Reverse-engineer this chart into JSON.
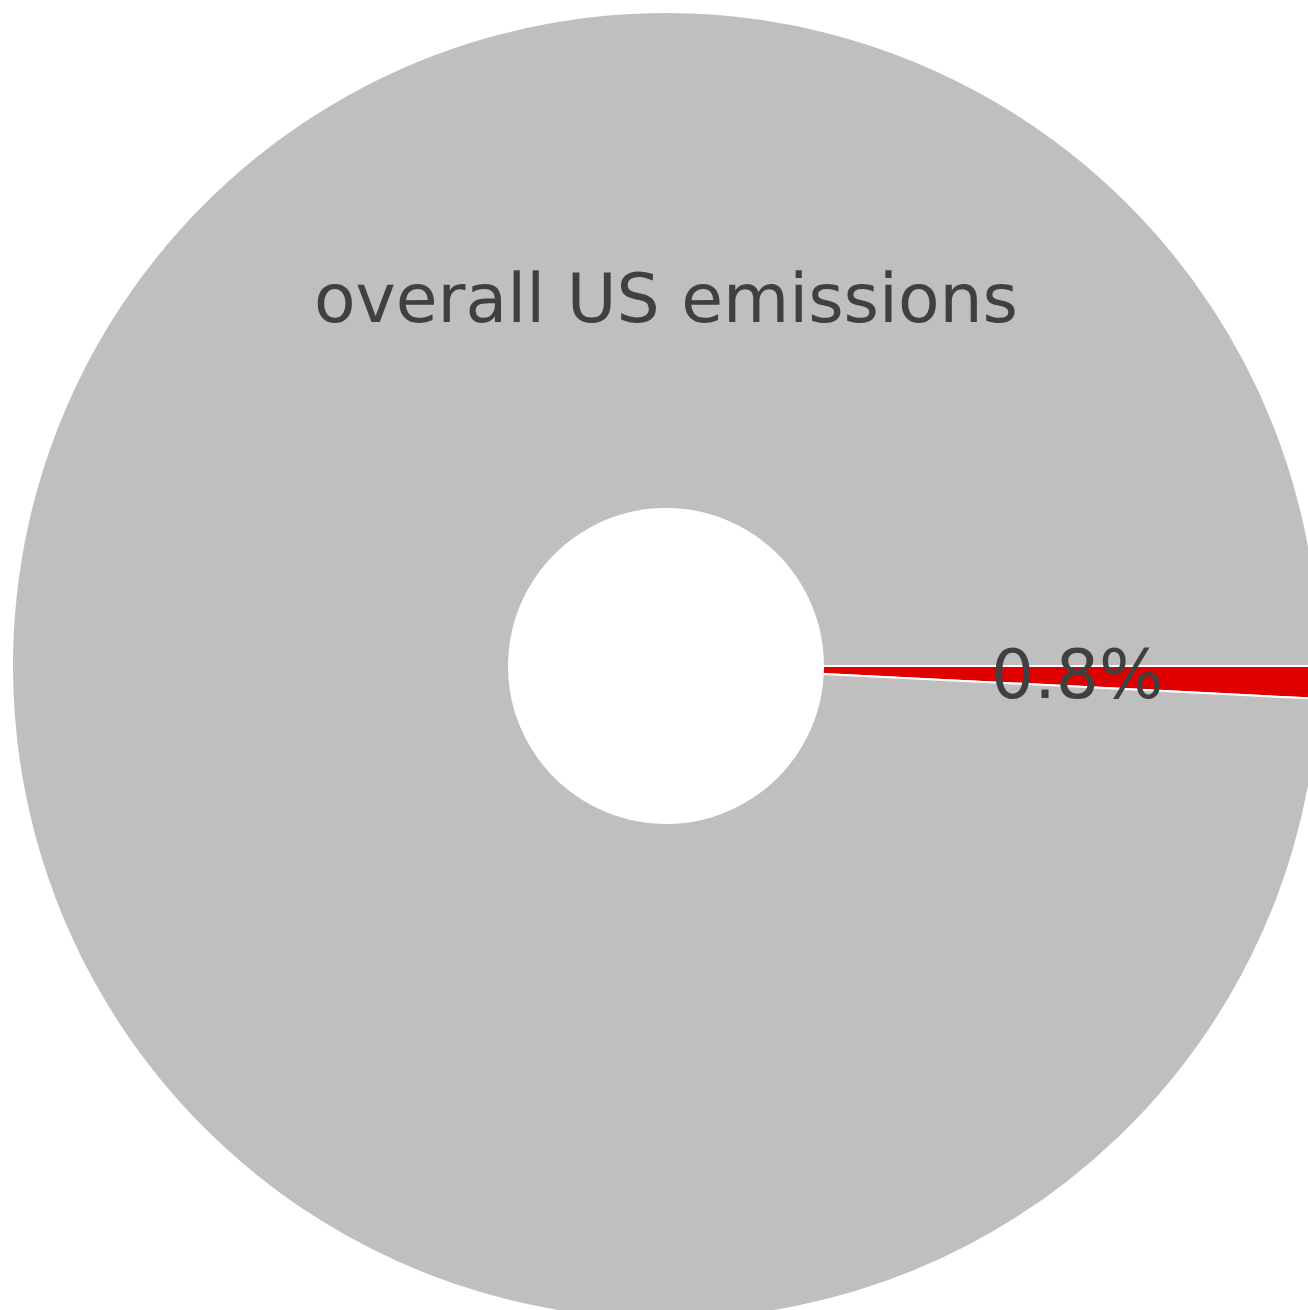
{
  "chart_data": {
    "type": "donut",
    "categories": [
      null,
      "overall US emissions"
    ],
    "values": [
      0.8,
      99.2
    ],
    "colors": [
      "#e00000",
      "#bfbfbf"
    ],
    "value_labels": [
      "0.8%",
      null
    ],
    "legend": false
  }
}
